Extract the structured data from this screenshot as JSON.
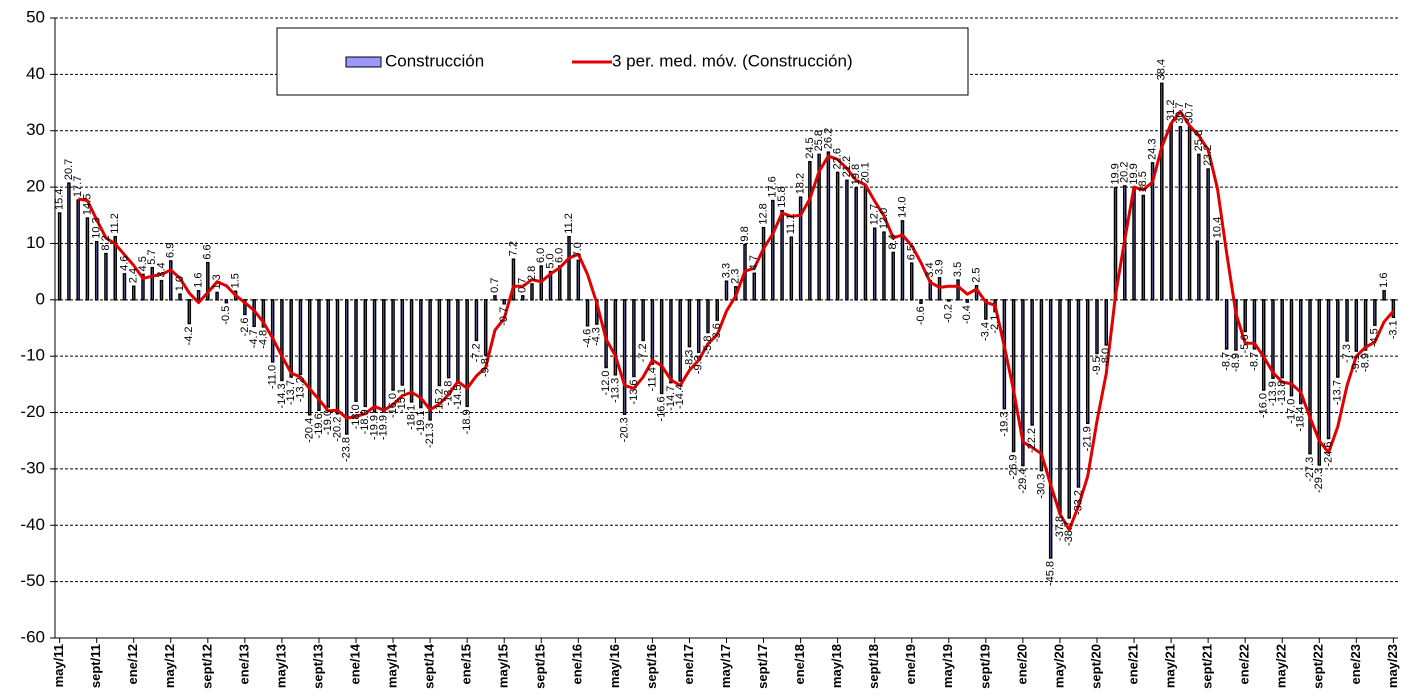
{
  "chart_data": {
    "type": "bar",
    "categories": [
      "may/11",
      null,
      null,
      null,
      "sept/11",
      null,
      null,
      null,
      "ene/12",
      null,
      null,
      null,
      "may/12",
      null,
      null,
      null,
      "sept/12",
      null,
      null,
      null,
      "ene/13",
      null,
      null,
      null,
      "may/13",
      null,
      null,
      null,
      "sept/13",
      null,
      null,
      null,
      "ene/14",
      null,
      null,
      null,
      "may/14",
      null,
      null,
      null,
      "sept/14",
      null,
      null,
      null,
      "ene/15",
      null,
      null,
      null,
      "may/15",
      null,
      null,
      null,
      "sept/15",
      null,
      null,
      null,
      "ene/16",
      null,
      null,
      null,
      "may/16",
      null,
      null,
      null,
      "sept/16",
      null,
      null,
      null,
      "ene/17",
      null,
      null,
      null,
      "may/17",
      null,
      null,
      null,
      "sept/17",
      null,
      null,
      null,
      "ene/18",
      null,
      null,
      null,
      "may/18",
      null,
      null,
      null,
      "sept/18",
      null,
      null,
      null,
      "ene/19",
      null,
      null,
      null,
      "may/19",
      null,
      null,
      null,
      "sept/19",
      null,
      null,
      null,
      "ene/20",
      null,
      null,
      null,
      "may/20",
      null,
      null,
      null,
      "sept/20",
      null,
      null,
      null,
      "ene/21",
      null,
      null,
      null,
      "may/21",
      null,
      null,
      null,
      "sept/21",
      null,
      null,
      null,
      "ene/22",
      null,
      null,
      null,
      "may/22",
      null,
      null,
      null,
      "sept/22",
      null,
      null,
      null,
      "ene/23",
      null,
      null,
      null,
      "may/23"
    ],
    "series": [
      {
        "name": "Construcción",
        "color": "#9999ff",
        "values": [
          15.4,
          20.7,
          17.7,
          14.5,
          10.3,
          8.2,
          11.2,
          4.6,
          2.4,
          4.5,
          5.7,
          3.4,
          6.9,
          1.0,
          -4.2,
          1.6,
          6.6,
          1.3,
          -0.5,
          1.5,
          -2.6,
          -4.7,
          -4.8,
          -11.0,
          -14.3,
          -13.7,
          -13.2,
          -20.4,
          -19.6,
          -19.0,
          -20.2,
          -23.8,
          -18.0,
          -18.9,
          -19.9,
          -19.9,
          -16.0,
          -15.1,
          -18.1,
          -19.1,
          -21.3,
          -15.2,
          -13.8,
          -14.5,
          -18.9,
          -7.2,
          -9.8,
          0.7,
          -0.7,
          7.2,
          0.7,
          2.8,
          6.0,
          5.0,
          6.0,
          11.2,
          7.0,
          -4.6,
          -4.3,
          -12.0,
          -13.3,
          -20.3,
          -13.6,
          -7.2,
          -11.4,
          -16.6,
          -14.7,
          -14.4,
          -8.3,
          -9.3,
          -5.8,
          -3.6,
          3.3,
          2.3,
          9.8,
          4.7,
          12.8,
          17.6,
          15.8,
          11.1,
          18.2,
          24.5,
          25.8,
          26.2,
          22.6,
          21.2,
          19.8,
          20.1,
          12.7,
          12.0,
          8.4,
          14.0,
          6.5,
          -0.6,
          3.4,
          3.9,
          -0.2,
          3.5,
          -0.4,
          2.5,
          -3.4,
          -2.1,
          -19.3,
          -26.9,
          -29.4,
          -22.2,
          -30.3,
          -45.8,
          -37.8,
          -38.7,
          -33.2,
          -21.9,
          -9.5,
          -8.0,
          19.9,
          20.2,
          19.9,
          18.5,
          24.3,
          38.4,
          31.2,
          30.7,
          30.7,
          25.8,
          23.2,
          10.4,
          -8.7,
          -8.9,
          -5.6,
          -8.7,
          -16.0,
          -13.9,
          -13.8,
          -17.0,
          -18.4,
          -27.3,
          -29.3,
          -24.6,
          -13.7,
          -7.3,
          -9.1,
          -8.9,
          -4.5,
          1.6,
          -3.1
        ],
        "value_labels": [
          "15.4",
          "20.7",
          "17.7",
          "14.5",
          "10.3",
          "8.2",
          "11.2",
          "4.6",
          "2.4",
          "4.5",
          "5.7",
          "3.4",
          "6.9",
          "1.0",
          "-4.2",
          "1.6",
          "6.6",
          "1.3",
          "-0.5",
          "1.5",
          "-2.6",
          "-4.7",
          "-4.8",
          "-11.0",
          "-14.3",
          "-13.7",
          "-13.2",
          "-20.4",
          "-19.6",
          "-19.0",
          "-20.2",
          "-23.8",
          "-18.0",
          "-18.9",
          "-19.9",
          "-19.9",
          "-16.0",
          "-15.1",
          "-18.1",
          "-19.1",
          "-21.3",
          "-15.2",
          "-13.8",
          "-14.5",
          "-18.9",
          "-7.2",
          "-9.8",
          "0.7",
          "-0.7",
          "7.2",
          "0.7",
          "2.8",
          "6.0",
          "5.0",
          "6.0",
          "11.2",
          "7.0",
          "-4.6",
          "-4.3",
          "-12.0",
          "-13.3",
          "-20.3",
          "-13.6",
          "-7.2",
          "-11.4",
          "-16.6",
          "-14.7",
          "-14.4",
          "-8.3",
          "-9.3",
          "-5.8",
          "-3.6",
          "3.3",
          "2.3",
          "9.8",
          "4.7",
          "12.8",
          "17.6",
          "15.8",
          "11.1",
          "18.2",
          "24.5",
          "25.8",
          "26.2",
          "22.6",
          "21.2",
          "19.8",
          "20.1",
          "12.7",
          "12.0",
          "8.4",
          "14.0",
          "6.5",
          "-0.6",
          "3.4",
          "3.9",
          "-0.2",
          "3.5",
          "-0.4",
          "2.5",
          "-3.4",
          "-2.1",
          "-19.3",
          "-26.9",
          "-29.4",
          "-22.2",
          "-30.3",
          "-45.8",
          "-37.8",
          "-38.7",
          "-33.2",
          "-21.9",
          "-9.5",
          "-8.0",
          "19.9",
          "20.2",
          "19.9",
          "18.5",
          "24.3",
          "38.4",
          "31.2",
          "30.7",
          "30.7",
          "25.8",
          "23.2",
          "10.4",
          "-8.7",
          "-8.9",
          "-5.6",
          "-8.7",
          "-16.0",
          "-13.9",
          "-13.8",
          "-17.0",
          "-18.4",
          "-27.3",
          "-29.3",
          "-24.6",
          "-13.7",
          "-7.3",
          "-9.1",
          "-8.9",
          "-4.5",
          "1.6",
          "-3.1"
        ]
      },
      {
        "name": "3 per. med. móv. (Construcción)",
        "type": "line",
        "color": "#e00000",
        "values": [
          null,
          null,
          17.9,
          17.6,
          14.2,
          11.0,
          9.9,
          8.0,
          6.1,
          3.8,
          4.2,
          4.5,
          5.3,
          3.8,
          1.2,
          -0.5,
          1.3,
          3.2,
          2.5,
          0.8,
          -0.5,
          -1.9,
          -4.0,
          -6.8,
          -10.0,
          -13.0,
          -13.7,
          -15.8,
          -17.7,
          -19.7,
          -19.6,
          -21.0,
          -20.7,
          -20.2,
          -18.9,
          -19.6,
          -18.6,
          -17.0,
          -16.4,
          -17.4,
          -19.5,
          -18.5,
          -16.8,
          -14.5,
          -15.7,
          -13.5,
          -12.0,
          -5.4,
          -3.3,
          2.4,
          2.4,
          3.6,
          3.2,
          4.6,
          5.7,
          7.4,
          8.1,
          4.5,
          -0.6,
          -7.0,
          -9.9,
          -15.2,
          -15.7,
          -13.7,
          -10.7,
          -11.7,
          -14.2,
          -15.2,
          -12.5,
          -10.7,
          -7.8,
          -6.2,
          -2.0,
          0.7,
          5.1,
          5.6,
          9.1,
          11.7,
          15.4,
          14.8,
          15.0,
          17.9,
          22.8,
          25.5,
          24.9,
          23.3,
          21.2,
          20.4,
          17.5,
          14.9,
          11.0,
          11.5,
          9.6,
          6.6,
          3.1,
          2.2,
          2.4,
          2.4,
          1.0,
          1.9,
          -0.4,
          -1.0,
          -8.3,
          -16.1,
          -25.2,
          -26.2,
          -27.3,
          -32.8,
          -38.0,
          -40.8,
          -36.6,
          -31.3,
          -21.5,
          -13.1,
          0.8,
          10.7,
          20.0,
          19.5,
          20.9,
          27.1,
          31.3,
          33.4,
          30.9,
          29.1,
          26.6,
          19.8,
          8.3,
          -2.4,
          -7.7,
          -7.7,
          -10.1,
          -12.9,
          -14.6,
          -14.9,
          -16.4,
          -20.9,
          -25.0,
          -27.1,
          -22.5,
          -15.2,
          -10.0,
          -8.4,
          -7.5,
          -3.9,
          -2.0
        ]
      }
    ],
    "ylim": [
      -60,
      50
    ],
    "yticks": [
      -60,
      -50,
      -40,
      -30,
      -20,
      -10,
      0,
      10,
      20,
      30,
      40,
      50
    ],
    "grid": true
  }
}
